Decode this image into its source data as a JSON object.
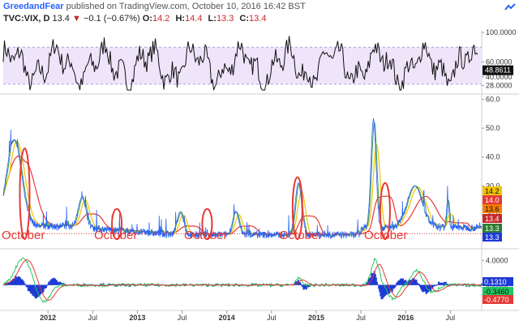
{
  "header": {
    "author": "GreedandFear",
    "published": "published on TradingView.com, October 10, 2016 16:42 BST",
    "symbol": "TVC:VIX, D",
    "last": "13.4",
    "change": "−0.1 (−0.67%)",
    "o_label": "O:",
    "o": "14.2",
    "h_label": "H:",
    "h": "14.4",
    "l_label": "L:",
    "l": "13.3",
    "c_label": "C:",
    "c": "13.4"
  },
  "colors": {
    "price_line": "#2962ff",
    "ma_yellow": "#f2c200",
    "ma_red": "#e53935",
    "ma_green": "#43a047",
    "band_fill": "#efe5fb",
    "band_line": "#b39ddb",
    "annotation": "#e53935",
    "hist_blue": "#1e3ad6",
    "macd_green": "#22c55e",
    "macd_red": "#e53935"
  },
  "chart_data": [
    {
      "type": "line",
      "panel": "oscillator",
      "y_ticks": [
        "100.0000",
        "60.0000",
        "40.0000",
        "28.0000"
      ],
      "y_tick_values": [
        100,
        60,
        40,
        28
      ],
      "ylim": [
        20,
        100
      ],
      "band_levels": [
        80,
        30
      ],
      "last_value_label": "48.8611",
      "last_value": 48.8611
    },
    {
      "type": "line",
      "panel": "price",
      "x_ticks": [
        "2012",
        "Jul",
        "2013",
        "Jul",
        "2014",
        "Jul",
        "2015",
        "Jul",
        "2016",
        "Jul"
      ],
      "y_ticks": [
        "60.0",
        "50.0",
        "40.0",
        "30.0",
        "20.0"
      ],
      "y_tick_values": [
        60,
        50,
        40,
        30,
        20
      ],
      "ylim": [
        9,
        61
      ],
      "price_badges": [
        {
          "label": "14.2",
          "value": 14.2,
          "color": "#f2c200",
          "text_color": "#111111"
        },
        {
          "label": "14.0",
          "value": 14.0,
          "color": "#e53935",
          "text_color": "#ffffff"
        },
        {
          "label": "13.6",
          "value": 13.6,
          "color": "#f57c00",
          "text_color": "#111111"
        },
        {
          "label": "13.4",
          "value": 13.4,
          "color": "#c62828",
          "text_color": "#ffffff"
        },
        {
          "label": "13.3",
          "value": 13.3,
          "color": "#2e7d32",
          "text_color": "#ffffff"
        },
        {
          "label": "13.3",
          "value": 13.3,
          "color": "#1e3ad6",
          "text_color": "#ffffff"
        }
      ],
      "annotations": [
        "October",
        "October",
        "October",
        "October",
        "October"
      ],
      "highlight_years": [
        2011,
        2012,
        2013,
        2014,
        2015
      ],
      "reference_value": 13.4
    },
    {
      "type": "line",
      "panel": "macd",
      "y_ticks": [
        "4.0000",
        "0.0000"
      ],
      "y_tick_values": [
        4,
        0
      ],
      "ylim": [
        -4,
        5.5
      ],
      "value_badges": [
        {
          "label": "0.1310",
          "value": 0.131,
          "color": "#1e3ad6"
        },
        {
          "label": "-0.3460",
          "value": -0.346,
          "color": "#22c55e"
        },
        {
          "label": "-0.4770",
          "value": -0.477,
          "color": "#e53935"
        }
      ]
    }
  ]
}
